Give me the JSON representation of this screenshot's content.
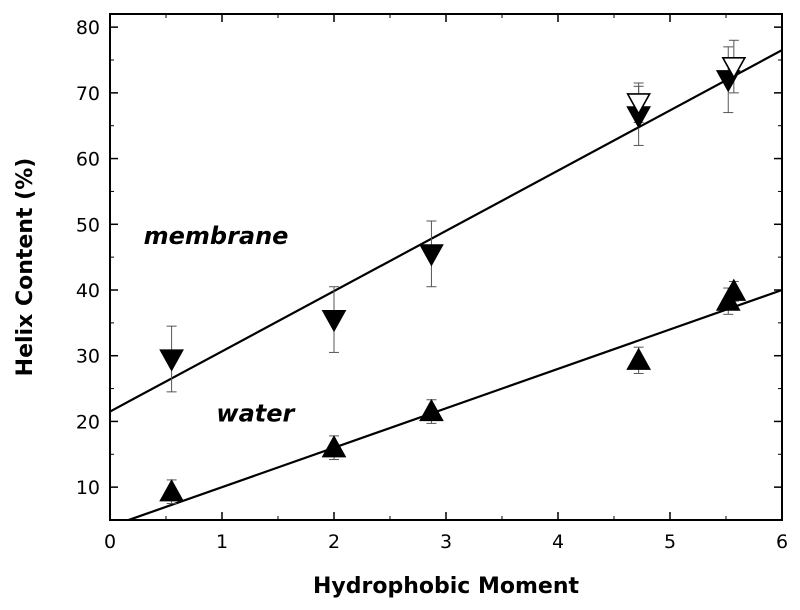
{
  "chart_data": {
    "type": "scatter",
    "title": "",
    "xlabel": "Hydrophobic Moment",
    "ylabel": "Helix Content (%)",
    "xlim": [
      0,
      6
    ],
    "ylim": [
      5,
      82
    ],
    "xticks": [
      0,
      1,
      2,
      3,
      4,
      5,
      6
    ],
    "yticks": [
      10,
      20,
      30,
      40,
      50,
      60,
      70,
      80
    ],
    "grid": false,
    "legend": "none",
    "annotations": [
      {
        "text": "membrane",
        "x": 0.3,
        "y": 47
      },
      {
        "text": "water",
        "x": 0.95,
        "y": 20
      }
    ],
    "series": [
      {
        "marker": "filled-down-triangle",
        "points": [
          {
            "x": 0.55,
            "y": 29.5,
            "err": 5
          },
          {
            "x": 2.0,
            "y": 35.5,
            "err": 5
          },
          {
            "x": 2.87,
            "y": 45.5,
            "err": 5
          },
          {
            "x": 4.72,
            "y": 66.5,
            "err": 4.5
          },
          {
            "x": 5.52,
            "y": 72,
            "err": 5
          }
        ]
      },
      {
        "marker": "open-down-triangle",
        "points": [
          {
            "x": 4.72,
            "y": 68.5,
            "err": 3
          },
          {
            "x": 5.57,
            "y": 74,
            "err": 4
          }
        ]
      },
      {
        "marker": "filled-up-triangle",
        "points": [
          {
            "x": 0.55,
            "y": 9.3,
            "err": 1.8
          },
          {
            "x": 2.0,
            "y": 16,
            "err": 1.8
          },
          {
            "x": 2.87,
            "y": 21.5,
            "err": 1.8
          },
          {
            "x": 4.72,
            "y": 29.3,
            "err": 2
          },
          {
            "x": 5.52,
            "y": 38.3,
            "err": 2
          },
          {
            "x": 5.57,
            "y": 39.8,
            "err": 1.5
          }
        ]
      }
    ],
    "fit_lines": [
      {
        "x": [
          0,
          6
        ],
        "y": [
          21.5,
          76.5
        ]
      },
      {
        "x": [
          0,
          6
        ],
        "y": [
          4,
          40
        ]
      }
    ],
    "colors": {
      "axis": "#000000",
      "marker": "#000000",
      "open_marker_fill": "#ffffff",
      "errorbar": "#555555"
    }
  }
}
